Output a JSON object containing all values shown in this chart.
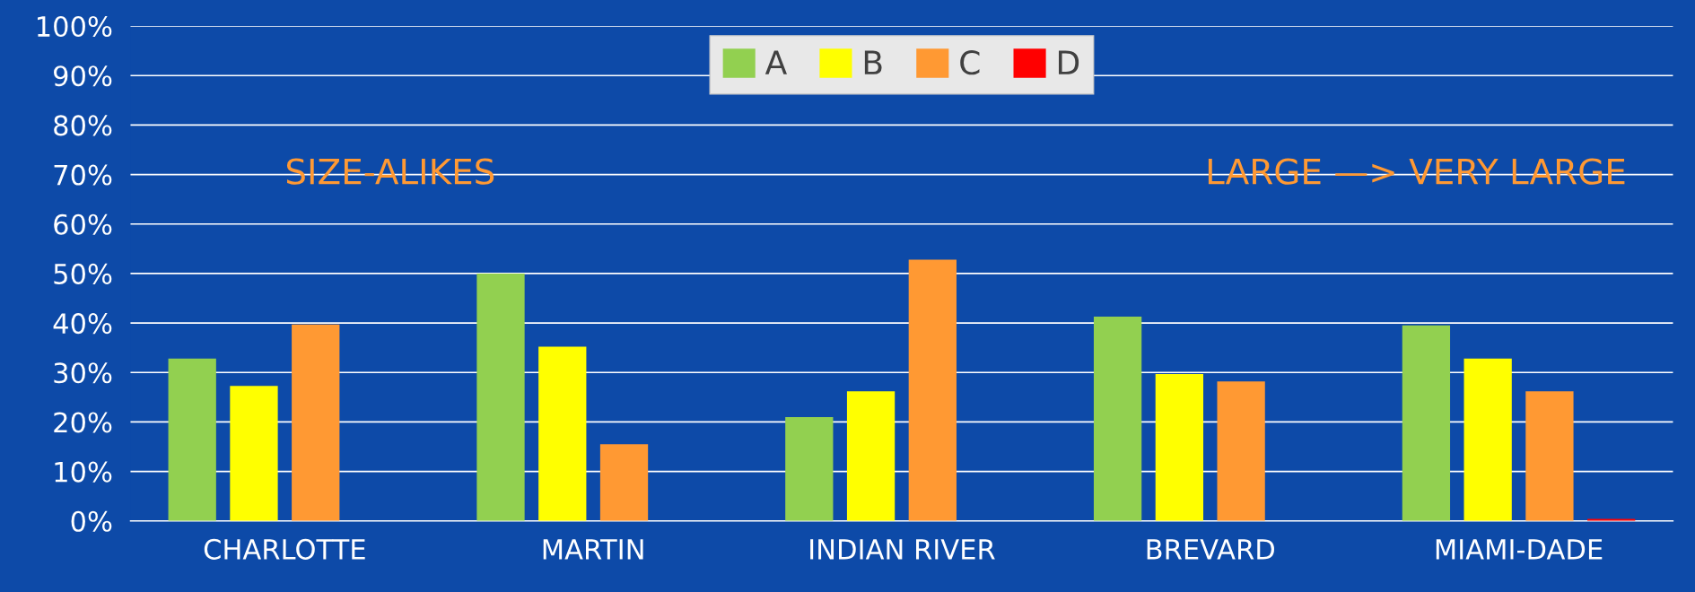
{
  "chart_data": {
    "type": "bar",
    "categories": [
      "CHARLOTTE",
      "MARTIN",
      "INDIAN RIVER",
      "BREVARD",
      "MIAMI-DADE"
    ],
    "series": [
      {
        "name": "A",
        "color": "#92d050",
        "values": [
          32.8,
          50,
          21,
          41.3,
          39.5
        ]
      },
      {
        "name": "B",
        "color": "#ffff00",
        "values": [
          27.3,
          35.2,
          26.2,
          29.7,
          32.8
        ]
      },
      {
        "name": "C",
        "color": "#ff9933",
        "values": [
          39.7,
          15.5,
          52.8,
          28.2,
          26.2
        ]
      },
      {
        "name": "D",
        "color": "#ff0000",
        "values": [
          0,
          0,
          0,
          0,
          0.4
        ]
      }
    ],
    "ylim": [
      0,
      100
    ],
    "yticks": [
      {
        "value": 0,
        "label": "0%"
      },
      {
        "value": 10,
        "label": "10%"
      },
      {
        "value": 20,
        "label": "20%"
      },
      {
        "value": 30,
        "label": "30%"
      },
      {
        "value": 40,
        "label": "40%"
      },
      {
        "value": 50,
        "label": "50%"
      },
      {
        "value": 60,
        "label": "60%"
      },
      {
        "value": 70,
        "label": "70%"
      },
      {
        "value": 80,
        "label": "80%"
      },
      {
        "value": 90,
        "label": "90%"
      },
      {
        "value": 100,
        "label": "100%"
      }
    ],
    "grid": "y",
    "legend": "top",
    "annotations": [
      "SIZE-ALIKES",
      "LARGE —> VERY LARGE"
    ]
  }
}
